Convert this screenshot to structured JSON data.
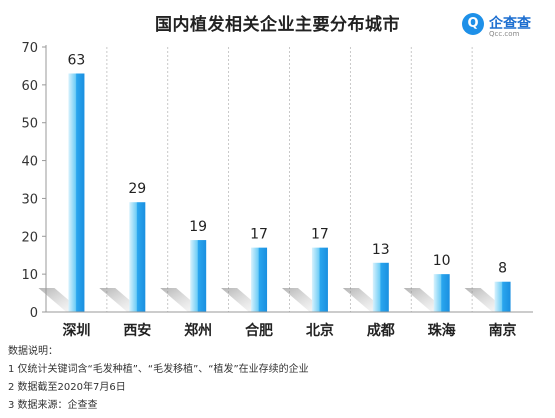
{
  "title": "国内植发相关企业主要分布城市",
  "logo": {
    "mark": "Q",
    "name": "企查查",
    "sub": "Qcc.com"
  },
  "notes": {
    "heading": "数据说明：",
    "lines": [
      "1 仅统计关键词含“毛发种植”、“毛发移植”、“植发”在业存续的企业",
      "2 数据截至2020年7月6日",
      "3 数据来源：企查查"
    ]
  },
  "colors": {
    "bar_light": "#cdeefd",
    "bar_mid": "#55c3f5",
    "bar_dark": "#1a97e6",
    "axis": "#999999",
    "grid": "#bbbbbb"
  },
  "chart_data": {
    "type": "bar",
    "title": "国内植发相关企业主要分布城市",
    "categories": [
      "深圳",
      "西安",
      "郑州",
      "合肥",
      "北京",
      "成都",
      "珠海",
      "南京"
    ],
    "values": [
      63,
      29,
      19,
      17,
      17,
      13,
      10,
      8
    ],
    "ylim": [
      0,
      70
    ],
    "yticks": [
      0,
      10,
      20,
      30,
      40,
      50,
      60,
      70
    ],
    "xlabel": "",
    "ylabel": "",
    "data_labels": true,
    "grid": "vertical"
  }
}
